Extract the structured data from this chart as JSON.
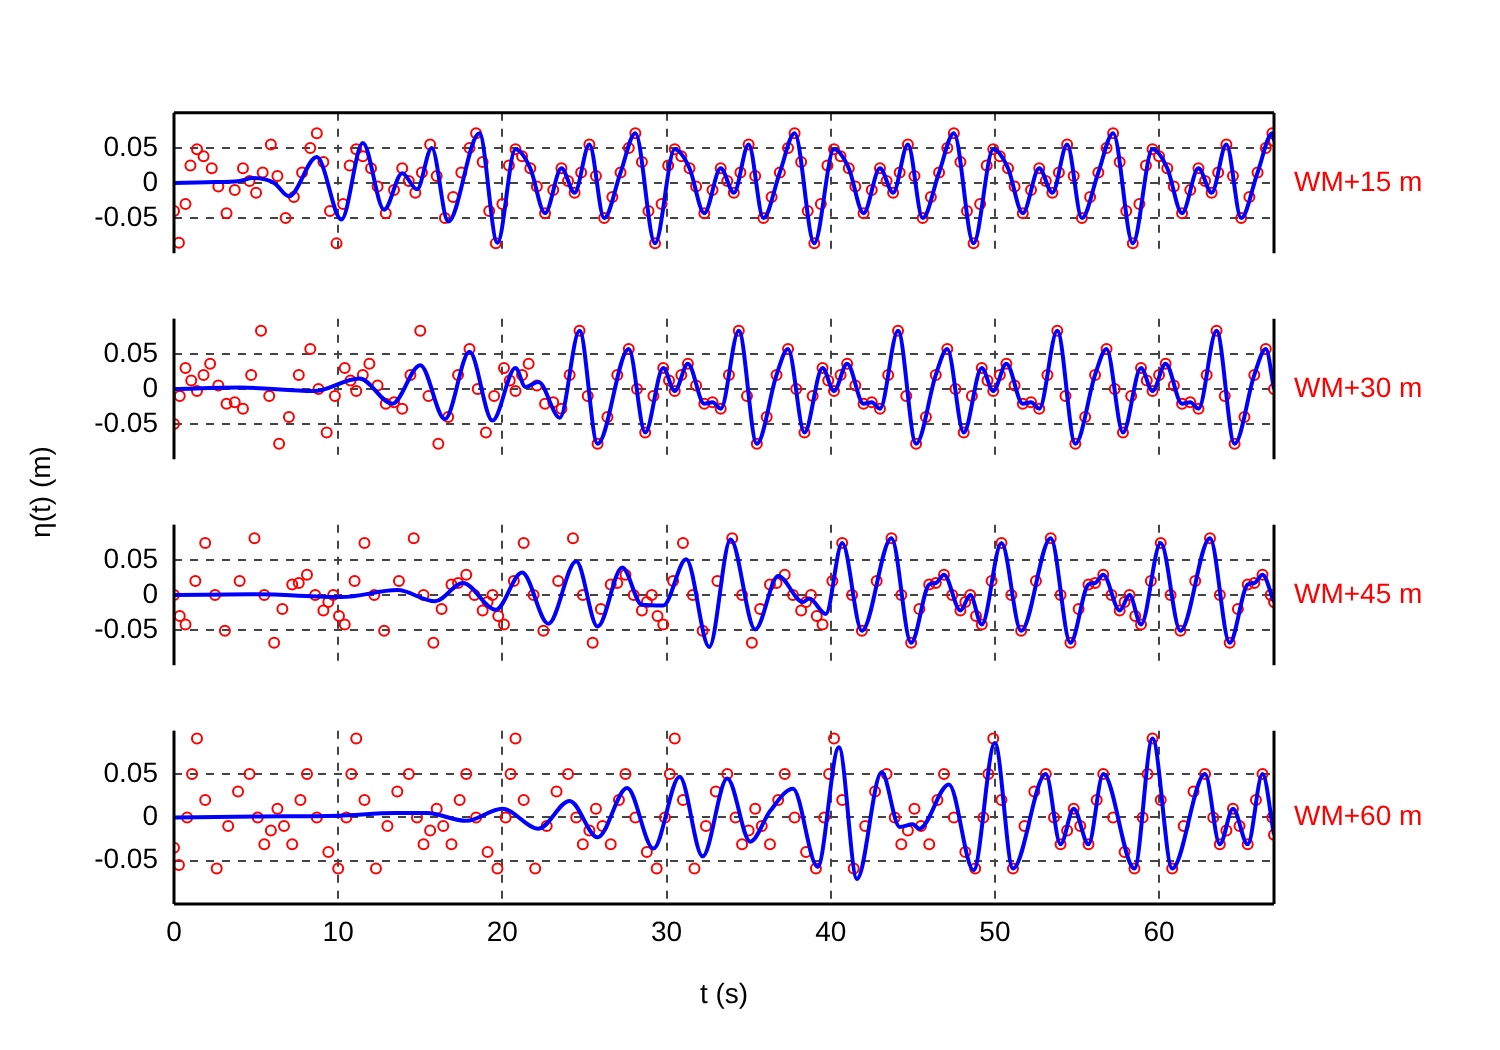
{
  "chart_data": [
    {
      "type": "line",
      "xlim": [
        0,
        67
      ],
      "xticks": [
        0,
        10,
        20,
        30,
        40,
        50,
        60
      ],
      "ylim": [
        -0.1,
        0.1
      ],
      "yticks": [
        -0.05,
        0,
        0.05
      ],
      "grid": true,
      "tick_labels": "y",
      "annotations": [
        "WM+15 m"
      ],
      "series": [
        {
          "type": "scatter",
          "color": "#ff0000",
          "marker": "circle",
          "x": [
            0,
            0.3,
            0.7,
            1.0,
            1.4,
            1.8,
            2.3,
            2.7,
            3.2,
            3.7,
            4.2,
            4.6,
            5.0,
            5.4,
            5.9,
            6.3,
            6.8,
            7.3,
            7.8,
            8.3,
            8.7,
            9.1,
            9.5,
            9.9,
            10.3,
            10.7,
            11.1,
            11.5,
            12.0,
            12.4,
            12.9,
            13.4,
            13.9,
            14.3,
            14.7,
            15.1,
            15.6,
            16.0,
            16.5,
            17.0,
            17.5,
            18.0,
            18.4,
            18.8,
            19.2,
            19.6,
            20.0,
            20.4,
            20.8,
            21.2,
            21.7,
            22.1,
            22.6,
            23.1,
            23.6,
            24.0,
            24.4,
            24.8,
            25.3,
            25.7,
            26.2,
            26.7,
            27.2,
            27.7,
            28.1,
            28.5,
            28.9,
            29.3,
            29.7,
            30.1,
            30.5,
            30.9,
            31.4,
            31.8,
            32.3,
            32.8,
            33.3,
            33.7,
            34.1,
            34.5,
            35.0,
            35.4,
            35.9,
            36.4,
            36.9,
            37.4,
            37.8,
            38.2,
            38.6,
            39.0,
            39.4,
            39.8,
            40.2,
            40.6,
            41.1,
            41.5,
            42.0,
            42.5,
            43.0,
            43.4,
            43.8,
            44.2,
            44.7,
            45.1,
            45.6,
            46.1,
            46.6,
            47.1,
            47.5,
            47.9,
            48.3,
            48.7,
            49.1,
            49.5,
            49.9,
            50.3,
            50.8,
            51.2,
            51.7,
            52.2,
            52.7,
            53.1,
            53.5,
            53.9,
            54.4,
            54.8,
            55.3,
            55.8,
            56.3,
            56.8,
            57.2,
            57.6,
            58.0,
            58.4,
            58.8,
            59.2,
            59.6,
            60.0,
            60.5,
            60.9,
            61.4,
            61.9,
            62.4,
            62.8,
            63.2,
            63.6,
            64.1,
            64.5,
            65.0,
            65.5,
            66.0,
            66.5,
            66.9,
            67.0
          ],
          "values": [
            -0.04,
            -0.085,
            -0.03,
            0.025,
            0.048,
            0.038,
            0.021,
            -0.005,
            -0.043,
            -0.01,
            0.021,
            0.003,
            -0.014,
            0.015,
            0.055,
            0.01,
            -0.05,
            -0.02,
            0.015,
            0.05,
            0.071,
            0.03,
            -0.04,
            -0.086,
            -0.03,
            0.025,
            0.048,
            0.038,
            0.021,
            -0.005,
            -0.043,
            -0.01,
            0.021,
            0.003,
            -0.014,
            0.015,
            0.055,
            0.01,
            -0.05,
            -0.02,
            0.015,
            0.05,
            0.071,
            0.03,
            -0.04,
            -0.086,
            -0.03,
            0.025,
            0.048,
            0.038,
            0.021,
            -0.005,
            -0.043,
            -0.01,
            0.021,
            0.003,
            -0.014,
            0.015,
            0.055,
            0.01,
            -0.05,
            -0.02,
            0.015,
            0.05,
            0.071,
            0.03,
            -0.04,
            -0.086,
            -0.03,
            0.025,
            0.048,
            0.038,
            0.021,
            -0.005,
            -0.043,
            -0.01,
            0.021,
            0.003,
            -0.014,
            0.015,
            0.055,
            0.01,
            -0.05,
            -0.02,
            0.015,
            0.05,
            0.071,
            0.03,
            -0.04,
            -0.086,
            -0.03,
            0.025,
            0.048,
            0.038,
            0.021,
            -0.005,
            -0.043,
            -0.01,
            0.021,
            0.003,
            -0.014,
            0.015,
            0.055,
            0.01,
            -0.05,
            -0.02,
            0.015,
            0.05,
            0.071,
            0.03,
            -0.04,
            -0.086,
            -0.03,
            0.025,
            0.048,
            0.038,
            0.021,
            -0.005,
            -0.043,
            -0.01,
            0.021,
            0.003,
            -0.014,
            0.015,
            0.055,
            0.01,
            -0.05,
            -0.02,
            0.015,
            0.05,
            0.071,
            0.03,
            -0.04,
            -0.086,
            -0.03,
            0.025,
            0.048,
            0.038,
            0.021,
            -0.005,
            -0.043,
            -0.01,
            0.021,
            0.003,
            -0.014,
            0.015,
            0.055,
            0.01,
            -0.05,
            -0.02,
            0.015,
            0.05,
            0.071,
            0.06
          ]
        },
        {
          "type": "line",
          "color": "#0000ff",
          "marker": "none",
          "x": [
            0,
            2,
            4,
            4.8,
            6.1,
            7.0,
            8.7,
            10.2,
            11.5,
            12.8,
            13.9,
            14.8,
            15.7,
            16.7,
            18.6,
            19.7,
            20.8,
            21.7,
            22.6,
            23.6,
            24.4,
            25.3,
            26.2,
            27.2,
            28.1,
            29.3,
            30.5,
            31.4,
            32.3,
            33.3,
            34.1,
            35.0,
            35.9,
            36.9,
            37.8,
            39.0,
            40.2,
            41.1,
            42.0,
            43.0,
            43.8,
            44.7,
            45.6,
            46.6,
            47.5,
            48.7,
            49.9,
            50.8,
            51.7,
            52.7,
            53.5,
            54.4,
            55.3,
            56.3,
            57.2,
            58.4,
            59.6,
            60.5,
            61.4,
            62.4,
            63.2,
            64.1,
            65.0,
            66.0,
            66.9,
            67.0
          ],
          "values": [
            0,
            0.001,
            0.003,
            0.007,
            0,
            -0.019,
            0.037,
            -0.052,
            0.057,
            -0.038,
            0.014,
            -0.009,
            0.05,
            -0.055,
            0.071,
            -0.085,
            0.048,
            0.021,
            -0.043,
            0.021,
            -0.014,
            0.055,
            -0.05,
            0.015,
            0.071,
            -0.086,
            0.048,
            0.021,
            -0.043,
            0.021,
            -0.014,
            0.055,
            -0.05,
            0.015,
            0.071,
            -0.086,
            0.048,
            0.021,
            -0.043,
            0.021,
            -0.014,
            0.055,
            -0.05,
            0.015,
            0.071,
            -0.086,
            0.048,
            0.021,
            -0.043,
            0.021,
            -0.014,
            0.055,
            -0.05,
            0.015,
            0.071,
            -0.086,
            0.048,
            0.021,
            -0.043,
            0.021,
            -0.014,
            0.055,
            -0.05,
            0.015,
            0.071,
            0.06
          ]
        }
      ]
    },
    {
      "type": "line",
      "xlim": [
        0,
        67
      ],
      "xticks": [
        0,
        10,
        20,
        30,
        40,
        50,
        60
      ],
      "ylim": [
        -0.1,
        0.1
      ],
      "yticks": [
        -0.05,
        0,
        0.05
      ],
      "grid": true,
      "tick_labels": "y",
      "ylabel": "η(t) (m)",
      "annotations": [
        "WM+30 m"
      ],
      "series": [
        {
          "type": "scatter",
          "color": "#ff0000",
          "marker": "circle",
          "x": [
            0,
            0.35,
            0.7,
            1.05,
            1.4,
            1.8,
            2.2,
            2.7,
            3.2,
            3.7,
            4.2,
            4.7,
            5.3,
            5.8,
            6.4,
            7.0,
            7.6,
            8.3,
            8.8,
            9.3,
            9.8,
            10.4,
            10.75,
            11.1,
            11.5,
            11.9,
            12.4,
            12.9,
            13.4,
            13.9,
            14.4,
            15.0,
            15.5,
            16.1,
            16.7,
            17.3,
            18.0,
            18.5,
            19.0,
            19.5,
            20.1,
            20.45,
            20.8,
            21.2,
            21.6,
            22.1,
            22.6,
            23.1,
            23.6,
            24.1,
            24.7,
            25.2,
            25.8,
            26.4,
            27.0,
            27.7,
            28.2,
            28.7,
            29.2,
            29.8,
            30.15,
            30.5,
            30.9,
            31.3,
            31.8,
            32.3,
            32.8,
            33.3,
            33.8,
            34.4,
            34.9,
            35.5,
            36.1,
            36.7,
            37.4,
            37.9,
            38.4,
            38.9,
            39.5,
            39.85,
            40.2,
            40.6,
            41.0,
            41.5,
            42.0,
            42.5,
            43.0,
            43.5,
            44.1,
            44.6,
            45.2,
            45.8,
            46.4,
            47.1,
            47.6,
            48.1,
            48.6,
            49.2,
            49.55,
            49.9,
            50.3,
            50.7,
            51.2,
            51.7,
            52.2,
            52.7,
            53.2,
            53.8,
            54.3,
            54.9,
            55.5,
            56.1,
            56.8,
            57.3,
            57.8,
            58.3,
            58.9,
            59.25,
            59.6,
            60.0,
            60.4,
            60.9,
            61.4,
            61.9,
            62.4,
            62.9,
            63.5,
            64.0,
            64.6,
            65.2,
            65.8,
            66.5,
            67.0
          ],
          "values": [
            -0.05,
            -0.01,
            0.03,
            0.012,
            -0.003,
            0.02,
            0.036,
            0.005,
            -0.021,
            -0.019,
            -0.028,
            0.02,
            0.083,
            -0.01,
            -0.078,
            -0.04,
            0.02,
            0.057,
            0,
            -0.062,
            -0.01,
            0.03,
            0.012,
            -0.003,
            0.02,
            0.036,
            0.005,
            -0.021,
            -0.019,
            -0.028,
            0.02,
            0.083,
            -0.01,
            -0.078,
            -0.04,
            0.02,
            0.057,
            0,
            -0.062,
            -0.01,
            0.03,
            0.012,
            -0.003,
            0.02,
            0.036,
            0.005,
            -0.021,
            -0.019,
            -0.028,
            0.02,
            0.083,
            -0.01,
            -0.078,
            -0.04,
            0.02,
            0.057,
            0,
            -0.062,
            -0.01,
            0.03,
            0.012,
            -0.003,
            0.02,
            0.036,
            0.005,
            -0.021,
            -0.019,
            -0.028,
            0.02,
            0.083,
            -0.01,
            -0.078,
            -0.04,
            0.02,
            0.057,
            0,
            -0.062,
            -0.01,
            0.03,
            0.012,
            -0.003,
            0.02,
            0.036,
            0.005,
            -0.021,
            -0.019,
            -0.028,
            0.02,
            0.083,
            -0.01,
            -0.078,
            -0.04,
            0.02,
            0.057,
            0,
            -0.062,
            -0.01,
            0.03,
            0.012,
            -0.003,
            0.02,
            0.036,
            0.005,
            -0.021,
            -0.019,
            -0.028,
            0.02,
            0.083,
            -0.01,
            -0.078,
            -0.04,
            0.02,
            0.057,
            0,
            -0.062,
            -0.01,
            0.03,
            0.012,
            -0.003,
            0.02,
            0.036,
            0.005,
            -0.021,
            -0.019,
            -0.028,
            0.02,
            0.083,
            -0.01,
            -0.078,
            -0.04,
            0.02,
            0.057,
            0
          ]
        },
        {
          "type": "line",
          "color": "#0000ff",
          "marker": "none",
          "x": [
            0,
            4,
            8.5,
            11.3,
            13.3,
            15.0,
            16.5,
            18.0,
            19.4,
            20.8,
            21.4,
            22.2,
            23.5,
            24.7,
            25.8,
            27.7,
            28.7,
            29.8,
            30.5,
            31.3,
            32.3,
            32.8,
            33.3,
            34.4,
            35.5,
            36.7,
            37.4,
            38.4,
            39.5,
            40.2,
            41.0,
            42.0,
            42.5,
            43.0,
            44.1,
            45.2,
            46.4,
            47.1,
            48.1,
            49.2,
            49.9,
            50.7,
            51.7,
            52.2,
            52.7,
            53.8,
            54.9,
            56.1,
            56.8,
            57.8,
            58.9,
            59.6,
            60.4,
            61.4,
            61.9,
            62.4,
            63.5,
            64.6,
            65.8,
            66.5,
            67.0
          ],
          "values": [
            0,
            0.002,
            -0.003,
            0.015,
            -0.021,
            0.034,
            -0.043,
            0.053,
            -0.045,
            0.03,
            0.003,
            0.01,
            -0.041,
            0.083,
            -0.078,
            0.057,
            -0.062,
            0.03,
            -0.003,
            0.036,
            -0.021,
            -0.019,
            -0.028,
            0.083,
            -0.078,
            0.02,
            0.057,
            -0.062,
            0.03,
            -0.003,
            0.036,
            -0.021,
            -0.019,
            -0.028,
            0.083,
            -0.078,
            0.02,
            0.057,
            -0.062,
            0.03,
            -0.003,
            0.036,
            -0.021,
            -0.019,
            -0.028,
            0.083,
            -0.078,
            0.02,
            0.057,
            -0.062,
            0.03,
            -0.003,
            0.036,
            -0.021,
            -0.019,
            -0.028,
            0.083,
            -0.078,
            0.02,
            0.057,
            0
          ]
        }
      ]
    },
    {
      "type": "line",
      "xlim": [
        0,
        67
      ],
      "xticks": [
        0,
        10,
        20,
        30,
        40,
        50,
        60
      ],
      "ylim": [
        -0.1,
        0.1
      ],
      "yticks": [
        -0.05,
        0,
        0.05
      ],
      "grid": true,
      "tick_labels": "y",
      "annotations": [
        "WM+45 m"
      ],
      "series": [
        {
          "type": "scatter",
          "color": "#ff0000",
          "marker": "circle",
          "x": [
            0,
            0.35,
            0.7,
            1.3,
            1.9,
            2.5,
            3.1,
            4.0,
            4.9,
            5.5,
            6.1,
            6.6,
            7.2,
            7.6,
            8.1,
            8.6,
            9.1,
            9.4,
            9.7,
            10.05,
            10.4,
            11.0,
            11.6,
            12.2,
            12.8,
            13.7,
            14.6,
            15.2,
            15.8,
            16.3,
            16.9,
            17.3,
            17.8,
            18.3,
            18.8,
            19.1,
            19.4,
            19.75,
            20.1,
            20.7,
            21.3,
            21.9,
            22.5,
            23.4,
            24.3,
            24.9,
            25.5,
            26.0,
            26.6,
            27.0,
            27.5,
            28.0,
            28.5,
            28.8,
            29.1,
            29.45,
            29.8,
            30.4,
            31.0,
            31.6,
            32.2,
            33.1,
            34.0,
            34.6,
            35.2,
            35.7,
            36.3,
            36.7,
            37.2,
            37.7,
            38.2,
            38.5,
            38.8,
            39.15,
            39.5,
            40.1,
            40.7,
            41.3,
            41.9,
            42.8,
            43.7,
            44.3,
            44.9,
            45.4,
            46.0,
            46.4,
            46.9,
            47.4,
            47.9,
            48.2,
            48.5,
            48.85,
            49.2,
            49.8,
            50.4,
            51.0,
            51.6,
            52.5,
            53.4,
            54.0,
            54.6,
            55.1,
            55.7,
            56.1,
            56.6,
            57.1,
            57.6,
            57.9,
            58.2,
            58.55,
            58.9,
            59.5,
            60.1,
            60.7,
            61.3,
            62.2,
            63.1,
            63.7,
            64.3,
            64.8,
            65.4,
            65.8,
            66.3,
            66.8,
            67.0
          ],
          "values": [
            0,
            -0.03,
            -0.042,
            0.02,
            0.074,
            0,
            -0.051,
            0.02,
            0.081,
            0,
            -0.068,
            -0.02,
            0.015,
            0.017,
            0.029,
            0,
            -0.022,
            -0.01,
            0,
            -0.03,
            -0.042,
            0.02,
            0.074,
            0,
            -0.051,
            0.02,
            0.081,
            0,
            -0.068,
            -0.02,
            0.015,
            0.017,
            0.029,
            0,
            -0.022,
            -0.01,
            0,
            -0.03,
            -0.042,
            0.02,
            0.074,
            0,
            -0.051,
            0.02,
            0.081,
            0,
            -0.068,
            -0.02,
            0.015,
            0.017,
            0.029,
            0,
            -0.022,
            -0.01,
            0,
            -0.03,
            -0.042,
            0.02,
            0.074,
            0,
            -0.051,
            0.02,
            0.081,
            0,
            -0.068,
            -0.02,
            0.015,
            0.017,
            0.029,
            0,
            -0.022,
            -0.01,
            0,
            -0.03,
            -0.042,
            0.02,
            0.074,
            0,
            -0.051,
            0.02,
            0.081,
            0,
            -0.068,
            -0.02,
            0.015,
            0.017,
            0.029,
            0,
            -0.022,
            -0.01,
            0,
            -0.03,
            -0.042,
            0.02,
            0.074,
            0,
            -0.051,
            0.02,
            0.081,
            0,
            -0.068,
            -0.02,
            0.015,
            0.017,
            0.029,
            0,
            -0.022,
            -0.01,
            0,
            -0.03,
            -0.042,
            0.02,
            0.074,
            0,
            -0.051,
            0.02,
            0.081,
            0,
            -0.068,
            -0.02,
            0.015,
            0.017,
            0.029,
            0,
            -0.01
          ]
        },
        {
          "type": "line",
          "color": "#0000ff",
          "marker": "none",
          "x": [
            0,
            5,
            10.2,
            13.6,
            15.9,
            17.6,
            19.6,
            21.2,
            22.8,
            24.5,
            25.8,
            27.3,
            28.5,
            29.8,
            31.2,
            32.6,
            33.9,
            35.4,
            36.8,
            38.3,
            38.7,
            39.7,
            40.7,
            41.9,
            43.7,
            44.9,
            46.0,
            46.4,
            46.9,
            47.9,
            48.5,
            49.2,
            50.4,
            51.6,
            53.4,
            54.6,
            55.7,
            56.1,
            56.6,
            57.6,
            58.2,
            58.9,
            60.1,
            61.3,
            63.1,
            64.3,
            65.4,
            65.8,
            66.3,
            67.0
          ],
          "values": [
            0,
            0.001,
            -0.003,
            0.007,
            -0.009,
            0.017,
            -0.021,
            0.032,
            -0.041,
            0.048,
            -0.045,
            0.039,
            -0.014,
            -0.015,
            0.051,
            -0.074,
            0.079,
            -0.049,
            0.027,
            -0.01,
            -0.005,
            -0.027,
            0.074,
            -0.051,
            0.081,
            -0.068,
            0.015,
            0.017,
            0.029,
            -0.022,
            0,
            -0.042,
            0.074,
            -0.051,
            0.081,
            -0.068,
            0.015,
            0.017,
            0.029,
            -0.022,
            0,
            -0.042,
            0.074,
            -0.051,
            0.081,
            -0.068,
            0.015,
            0.017,
            0.029,
            -0.01
          ]
        }
      ]
    },
    {
      "type": "line",
      "xlim": [
        0,
        67
      ],
      "xticks": [
        0,
        10,
        20,
        30,
        40,
        50,
        60
      ],
      "ylim": [
        -0.1,
        0.1
      ],
      "yticks": [
        -0.05,
        0,
        0.05
      ],
      "grid": true,
      "xlabel": "t (s)",
      "annotations": [
        "WM+60 m"
      ],
      "series": [
        {
          "type": "scatter",
          "color": "#ff0000",
          "marker": "circle",
          "x": [
            0,
            0.3,
            0.8,
            1.1,
            1.4,
            1.9,
            2.6,
            3.3,
            3.9,
            4.6,
            5.1,
            5.5,
            5.9,
            6.3,
            6.7,
            7.2,
            7.7,
            8.1,
            8.7,
            9.4,
            10.0,
            10.5,
            10.8,
            11.1,
            11.6,
            12.3,
            13.0,
            13.6,
            14.3,
            14.8,
            15.2,
            15.6,
            16.0,
            16.4,
            16.9,
            17.4,
            17.8,
            18.4,
            19.1,
            19.7,
            20.2,
            20.5,
            20.8,
            21.3,
            22.0,
            22.7,
            23.3,
            24.0,
            24.5,
            24.9,
            25.3,
            25.7,
            26.1,
            26.6,
            27.1,
            27.5,
            28.1,
            28.8,
            29.4,
            29.9,
            30.2,
            30.5,
            31.0,
            31.7,
            32.4,
            33.0,
            33.7,
            34.2,
            34.6,
            35.0,
            35.4,
            35.8,
            36.3,
            36.8,
            37.2,
            37.8,
            38.5,
            39.1,
            39.6,
            39.9,
            40.2,
            40.7,
            41.4,
            42.1,
            42.7,
            43.4,
            43.9,
            44.3,
            44.7,
            45.1,
            45.5,
            46.0,
            46.5,
            46.9,
            47.5,
            48.2,
            48.8,
            49.3,
            49.6,
            49.9,
            50.4,
            51.1,
            51.8,
            52.4,
            53.1,
            53.6,
            54.0,
            54.4,
            54.8,
            55.2,
            55.7,
            56.2,
            56.6,
            57.2,
            57.9,
            58.5,
            59.0,
            59.3,
            59.6,
            60.1,
            60.8,
            61.5,
            62.1,
            62.8,
            63.3,
            63.7,
            64.1,
            64.5,
            64.9,
            65.4,
            65.9,
            66.3,
            66.9,
            67.0
          ],
          "values": [
            -0.035,
            -0.055,
            0,
            0.05,
            0.091,
            0.02,
            -0.059,
            -0.01,
            0.03,
            0.05,
            0,
            -0.031,
            -0.015,
            0.01,
            -0.01,
            -0.031,
            0.02,
            0.05,
            0,
            -0.04,
            -0.059,
            0,
            0.05,
            0.091,
            0.02,
            -0.059,
            -0.01,
            0.03,
            0.05,
            0,
            -0.031,
            -0.015,
            0.01,
            -0.01,
            -0.031,
            0.02,
            0.05,
            0,
            -0.04,
            -0.059,
            0,
            0.05,
            0.091,
            0.02,
            -0.059,
            -0.01,
            0.03,
            0.05,
            0,
            -0.031,
            -0.015,
            0.01,
            -0.01,
            -0.031,
            0.02,
            0.05,
            0,
            -0.04,
            -0.059,
            0,
            0.05,
            0.091,
            0.02,
            -0.059,
            -0.01,
            0.03,
            0.05,
            0,
            -0.031,
            -0.015,
            0.01,
            -0.01,
            -0.031,
            0.02,
            0.05,
            0,
            -0.04,
            -0.059,
            0,
            0.05,
            0.091,
            0.02,
            -0.059,
            -0.01,
            0.03,
            0.05,
            0,
            -0.031,
            -0.015,
            0.01,
            -0.01,
            -0.031,
            0.02,
            0.05,
            0,
            -0.04,
            -0.059,
            0,
            0.05,
            0.091,
            0.02,
            -0.059,
            -0.01,
            0.03,
            0.05,
            0,
            -0.031,
            -0.015,
            0.01,
            -0.01,
            -0.031,
            0.02,
            0.05,
            0,
            -0.04,
            -0.059,
            0,
            0.05,
            0.091,
            0.02,
            -0.059,
            -0.01,
            0.03,
            0.05,
            0,
            -0.031,
            -0.015,
            0.01,
            -0.01,
            -0.031,
            0.02,
            0.05,
            0,
            -0.02
          ]
        },
        {
          "type": "line",
          "color": "#0000ff",
          "marker": "none",
          "x": [
            0,
            5,
            10,
            13.5,
            15.4,
            17.8,
            20.0,
            22.2,
            24.1,
            25.8,
            27.6,
            29.2,
            30.8,
            32.2,
            33.7,
            35.1,
            36.3,
            37.7,
            39.2,
            40.5,
            41.6,
            43.1,
            44.2,
            45.0,
            45.4,
            47.2,
            48.7,
            50.0,
            51.1,
            53.1,
            54.0,
            54.8,
            55.7,
            56.6,
            58.5,
            59.6,
            60.8,
            62.8,
            63.7,
            64.5,
            65.4,
            66.3,
            67.0
          ],
          "values": [
            0,
            0.001,
            0.002,
            0.005,
            0.005,
            -0.004,
            0.01,
            -0.013,
            0.019,
            -0.023,
            0.034,
            -0.036,
            0.047,
            -0.045,
            0.045,
            -0.028,
            0.007,
            0.033,
            -0.057,
            0.081,
            -0.071,
            0.052,
            -0.011,
            -0.008,
            -0.013,
            0.038,
            -0.061,
            0.086,
            -0.059,
            0.05,
            -0.031,
            0.01,
            -0.031,
            0.05,
            -0.059,
            0.091,
            -0.059,
            0.05,
            -0.031,
            0.01,
            -0.031,
            0.05,
            -0.02
          ]
        }
      ]
    }
  ]
}
